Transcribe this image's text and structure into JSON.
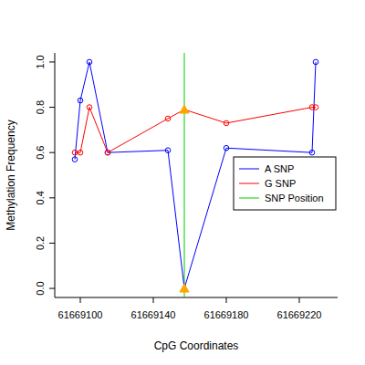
{
  "chart_data": {
    "type": "line",
    "x_label": "CpG Coordinates",
    "y_label": "Methylation Frequency",
    "xlim": [
      61669086,
      61669241
    ],
    "ylim": [
      -0.04,
      1.04
    ],
    "xticks": [
      61669100,
      61669140,
      61669180,
      61669220
    ],
    "yticks": [
      {
        "value": 0,
        "label": "0.0"
      },
      {
        "value": 0.2,
        "label": "0.2"
      },
      {
        "value": 0.4,
        "label": "0.4"
      },
      {
        "value": 0.6,
        "label": "0.6"
      },
      {
        "value": 0.8,
        "label": "0.8"
      },
      {
        "value": 1,
        "label": "1.0"
      }
    ],
    "legend": "right",
    "marker": "circle",
    "series": [
      {
        "name": "A SNP",
        "color": "#0000ff",
        "x": [
          61669097,
          61669100,
          61669105,
          61669115,
          61669148,
          61669157,
          61669180,
          61669227,
          61669229
        ],
        "values": [
          0.57,
          0.83,
          1.0,
          0.6,
          0.61,
          0,
          0.62,
          0.6,
          1.0
        ]
      },
      {
        "name": "G SNP",
        "color": "#ff0000",
        "x": [
          61669097,
          61669100,
          61669105,
          61669115,
          61669148,
          61669157,
          61669180,
          61669227,
          61669229
        ],
        "values": [
          0.6,
          0.6,
          0.8,
          0.6,
          0.75,
          0.79,
          0.73,
          0.8,
          0.8
        ]
      }
    ],
    "snp_position": {
      "name": "SNP Position",
      "color": "#00cc00",
      "x": 61669157
    }
  }
}
